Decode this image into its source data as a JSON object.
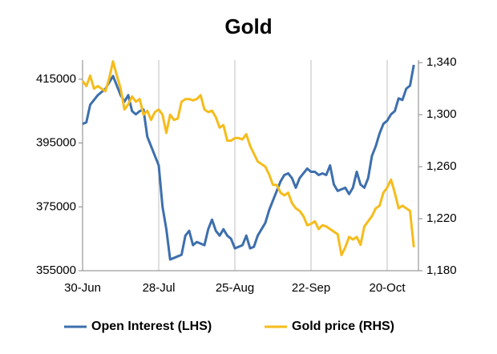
{
  "chart_data": {
    "type": "line",
    "title": "Gold",
    "categories": [
      "30-Jun",
      null,
      null,
      null,
      null,
      null,
      null,
      null,
      null,
      null,
      null,
      null,
      null,
      null,
      null,
      null,
      null,
      null,
      null,
      null,
      "28-Jul",
      null,
      null,
      null,
      null,
      null,
      null,
      null,
      null,
      null,
      null,
      null,
      null,
      null,
      null,
      null,
      null,
      null,
      null,
      null,
      "25-Aug",
      null,
      null,
      null,
      null,
      null,
      null,
      null,
      null,
      null,
      null,
      null,
      null,
      null,
      null,
      null,
      null,
      null,
      null,
      null,
      "22-Sep",
      null,
      null,
      null,
      null,
      null,
      null,
      null,
      null,
      null,
      null,
      null,
      null,
      null,
      null,
      null,
      null,
      null,
      null,
      null,
      "20-Oct",
      null,
      null,
      null,
      null,
      null,
      null,
      null
    ],
    "ylim": [
      355000,
      421000
    ],
    "yticks": [
      355000,
      375000,
      395000,
      415000
    ],
    "y2lim": [
      1180,
      1342
    ],
    "y2ticks": [
      {
        "value": 1180,
        "label": "1,180"
      },
      {
        "value": 1220,
        "label": "1,220"
      },
      {
        "value": 1260,
        "label": "1,260"
      },
      {
        "value": 1300,
        "label": "1,300"
      },
      {
        "value": 1340,
        "label": "1,340"
      }
    ],
    "grid": "x",
    "legend": "bottom",
    "series": [
      {
        "name": "Open Interest (LHS)",
        "color": "#3d6fad",
        "values": [
          401000,
          401500,
          407000,
          408500,
          410000,
          411000,
          412000,
          414000,
          416000,
          413000,
          410000,
          408000,
          410000,
          405000,
          404000,
          405000,
          405500,
          397000,
          394000,
          391000,
          388000,
          375000,
          368000,
          358500,
          359000,
          359500,
          360000,
          366000,
          367500,
          363000,
          364000,
          363500,
          363000,
          368000,
          371000,
          367500,
          366000,
          368000,
          366000,
          365000,
          362000,
          362500,
          363000,
          366000,
          362000,
          362500,
          366000,
          368000,
          370000,
          374000,
          377000,
          380000,
          383000,
          385000,
          385500,
          384000,
          381000,
          384000,
          385500,
          387000,
          386000,
          386000,
          385000,
          385500,
          385000,
          388000,
          382000,
          380000,
          380500,
          381000,
          379000,
          381000,
          386000,
          382000,
          381000,
          384000,
          391000,
          394000,
          398000,
          401000,
          402000,
          404000,
          405000,
          409000,
          408500,
          412000,
          413000,
          419500
        ]
      },
      {
        "name": "Gold price (RHS)",
        "color": "#f5bc1c",
        "axis": "y2",
        "values": [
          1326,
          1322,
          1330,
          1320,
          1322,
          1320,
          1318,
          1328,
          1341,
          1330,
          1320,
          1304,
          1308,
          1314,
          1310,
          1312,
          1300,
          1303,
          1296,
          1302,
          1304,
          1300,
          1286,
          1300,
          1296,
          1297,
          1310,
          1312,
          1312,
          1311,
          1312,
          1315,
          1304,
          1302,
          1303,
          1298,
          1290,
          1292,
          1280,
          1280,
          1282,
          1282,
          1281,
          1285,
          1276,
          1270,
          1264,
          1262,
          1260,
          1254,
          1246,
          1246,
          1240,
          1238,
          1240,
          1232,
          1228,
          1226,
          1222,
          1215,
          1216,
          1218,
          1212,
          1215,
          1214,
          1212,
          1210,
          1208,
          1192,
          1198,
          1206,
          1204,
          1206,
          1200,
          1214,
          1218,
          1222,
          1228,
          1230,
          1240,
          1244,
          1250,
          1240,
          1228,
          1230,
          1228,
          1226,
          1198
        ]
      }
    ]
  }
}
